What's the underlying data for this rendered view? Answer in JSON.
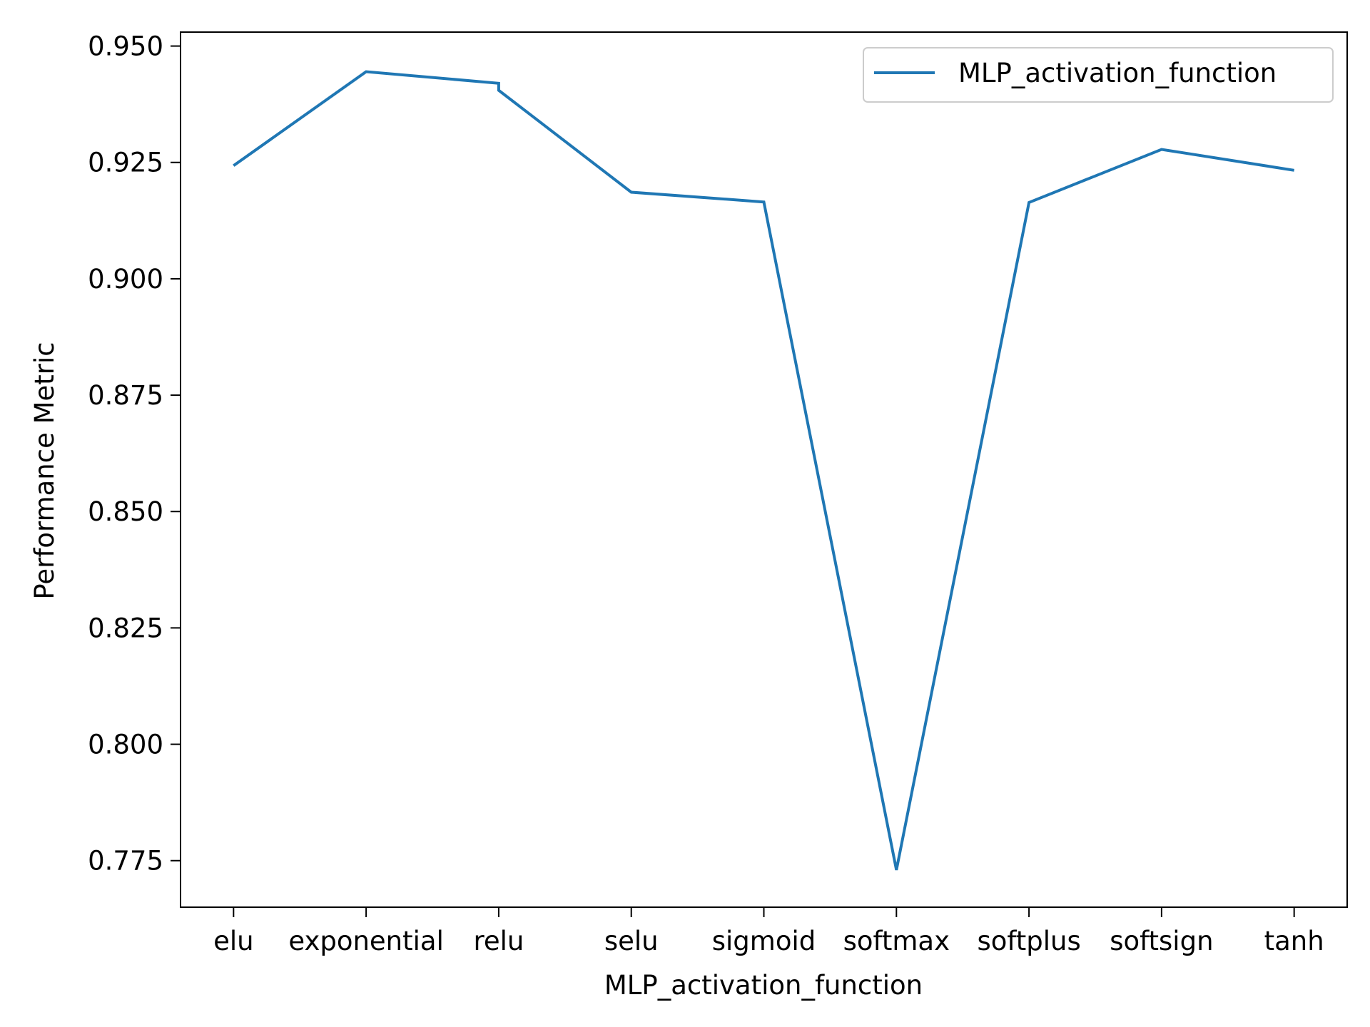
{
  "chart_data": {
    "type": "line",
    "xlabel": "MLP_activation_function",
    "ylabel": "Performance Metric",
    "categories": [
      "elu",
      "exponential",
      "relu",
      "selu",
      "sigmoid",
      "softmax",
      "softplus",
      "softsign",
      "tanh"
    ],
    "series": [
      {
        "name": "MLP_activation_function",
        "color": "#1f77b4",
        "points": [
          {
            "x": "elu",
            "y": 0.9243
          },
          {
            "x": "exponential",
            "y": 0.9445
          },
          {
            "x": "relu",
            "y": 0.942
          },
          {
            "x": "relu",
            "y": 0.9405
          },
          {
            "x": "selu",
            "y": 0.9186
          },
          {
            "x": "sigmoid",
            "y": 0.9165
          },
          {
            "x": "softmax",
            "y": 0.773
          },
          {
            "x": "softplus",
            "y": 0.9164
          },
          {
            "x": "softsign",
            "y": 0.9278
          },
          {
            "x": "tanh",
            "y": 0.9233
          }
        ]
      }
    ],
    "yticks": [
      "0.775",
      "0.800",
      "0.825",
      "0.850",
      "0.875",
      "0.900",
      "0.925",
      "0.950"
    ],
    "ylim": [
      0.765,
      0.953
    ],
    "xlim": [
      -0.4,
      8.4
    ],
    "grid": false,
    "legend_position": "top-right"
  }
}
